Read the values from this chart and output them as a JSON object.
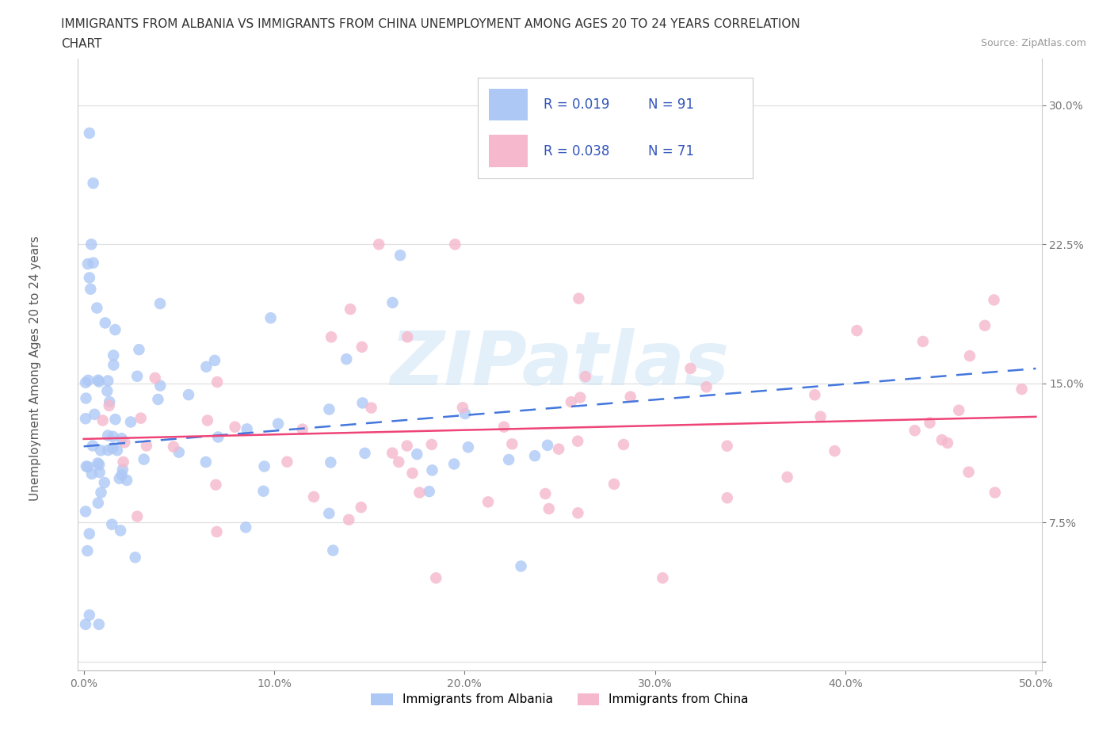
{
  "title_line1": "IMMIGRANTS FROM ALBANIA VS IMMIGRANTS FROM CHINA UNEMPLOYMENT AMONG AGES 20 TO 24 YEARS CORRELATION",
  "title_line2": "CHART",
  "source": "Source: ZipAtlas.com",
  "ylabel": "Unemployment Among Ages 20 to 24 years",
  "albania_color": "#adc8f5",
  "albania_edge": "#adc8f5",
  "china_color": "#f5b8cc",
  "china_edge": "#f5b8cc",
  "trend_albania_color": "#4477dd",
  "trend_china_color": "#ee4477",
  "watermark": "ZIPatlas",
  "background": "#ffffff",
  "grid_color": "#e0e0e0",
  "legend_text_color": "#3355bb"
}
